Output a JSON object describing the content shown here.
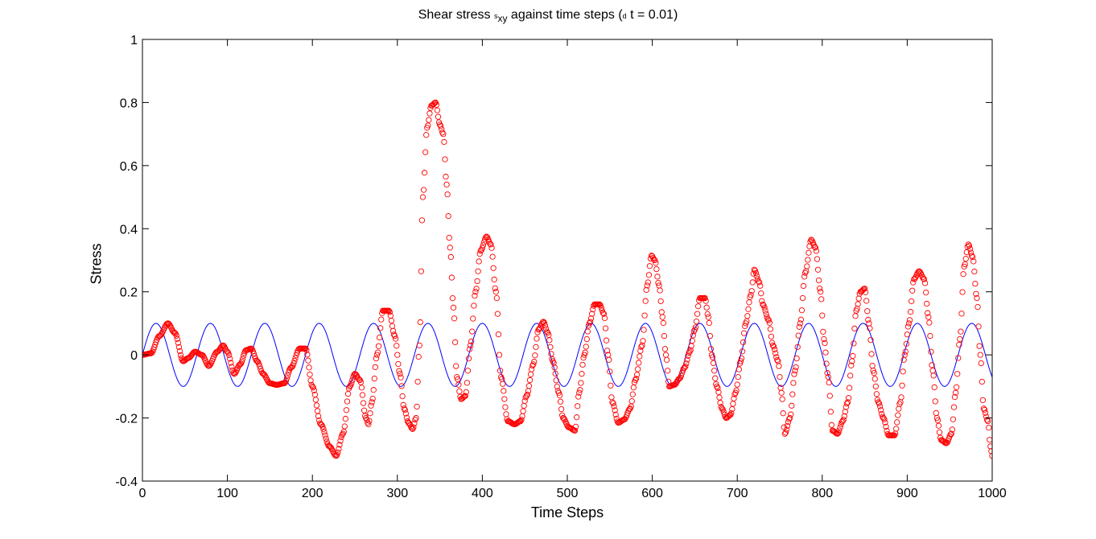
{
  "title": {
    "prefix": "Shear stress ",
    "symbol1": "s",
    "subscript": "xy",
    "middle": " against time steps (",
    "symbol2": "d",
    "suffix": " t = 0.01)"
  },
  "chart_data": {
    "type": "line",
    "xlabel": "Time Steps",
    "ylabel": "Stress",
    "xlim": [
      0,
      1000
    ],
    "ylim": [
      -0.4,
      1
    ],
    "xticks": [
      0,
      100,
      200,
      300,
      400,
      500,
      600,
      700,
      800,
      900,
      1000
    ],
    "yticks": [
      -0.4,
      -0.2,
      0,
      0.2,
      0.4,
      0.6,
      0.8,
      1
    ],
    "ytick_labels": [
      "-0.4",
      "-0.2",
      "0",
      "0.2",
      "0.4",
      "0.6",
      "0.8",
      "1"
    ],
    "grid": false,
    "series": [
      {
        "style": "line",
        "color": "#0000ff",
        "function": "0.1*sin(2*pi*x/64)",
        "amplitude": 0.1,
        "period": 64
      },
      {
        "style": "circle-markers",
        "color": "#ff0000",
        "points": [
          [
            0,
            0
          ],
          [
            10,
            0.005
          ],
          [
            20,
            0.06
          ],
          [
            30,
            0.1
          ],
          [
            38,
            0.07
          ],
          [
            48,
            -0.02
          ],
          [
            54,
            -0.01
          ],
          [
            62,
            0.01
          ],
          [
            70,
            0.0
          ],
          [
            78,
            -0.035
          ],
          [
            88,
            0.01
          ],
          [
            95,
            0.03
          ],
          [
            100,
            0.01
          ],
          [
            108,
            -0.06
          ],
          [
            115,
            -0.03
          ],
          [
            122,
            0.015
          ],
          [
            128,
            0.02
          ],
          [
            135,
            -0.02
          ],
          [
            142,
            -0.06
          ],
          [
            150,
            -0.09
          ],
          [
            158,
            -0.095
          ],
          [
            167,
            -0.09
          ],
          [
            175,
            -0.04
          ],
          [
            185,
            0.02
          ],
          [
            192,
            0.02
          ],
          [
            200,
            -0.1
          ],
          [
            210,
            -0.22
          ],
          [
            220,
            -0.29
          ],
          [
            228,
            -0.32
          ],
          [
            236,
            -0.25
          ],
          [
            244,
            -0.1
          ],
          [
            250,
            -0.06
          ],
          [
            256,
            -0.08
          ],
          [
            263,
            -0.2
          ],
          [
            266,
            -0.22
          ],
          [
            270,
            -0.15
          ],
          [
            276,
            0.0
          ],
          [
            283,
            0.14
          ],
          [
            290,
            0.14
          ],
          [
            297,
            0.06
          ],
          [
            303,
            -0.06
          ],
          [
            308,
            -0.17
          ],
          [
            313,
            -0.215
          ],
          [
            318,
            -0.235
          ],
          [
            322,
            -0.2
          ],
          [
            326,
            0.03
          ],
          [
            330,
            0.5
          ],
          [
            335,
            0.72
          ],
          [
            340,
            0.79
          ],
          [
            345,
            0.8
          ],
          [
            350,
            0.73
          ],
          [
            354,
            0.7
          ],
          [
            358,
            0.54
          ],
          [
            362,
            0.34
          ],
          [
            366,
            0.15
          ],
          [
            370,
            -0.07
          ],
          [
            375,
            -0.14
          ],
          [
            380,
            -0.13
          ],
          [
            386,
            0.03
          ],
          [
            392,
            0.2
          ],
          [
            398,
            0.33
          ],
          [
            405,
            0.375
          ],
          [
            410,
            0.35
          ],
          [
            416,
            0.2
          ],
          [
            422,
            -0.07
          ],
          [
            430,
            -0.21
          ],
          [
            438,
            -0.22
          ],
          [
            445,
            -0.21
          ],
          [
            452,
            -0.13
          ],
          [
            460,
            -0.03
          ],
          [
            466,
            0.08
          ],
          [
            472,
            0.105
          ],
          [
            477,
            0.07
          ],
          [
            483,
            -0.02
          ],
          [
            490,
            -0.12
          ],
          [
            495,
            -0.2
          ],
          [
            502,
            -0.23
          ],
          [
            509,
            -0.24
          ],
          [
            514,
            -0.12
          ],
          [
            520,
            0.0
          ],
          [
            526,
            0.1
          ],
          [
            532,
            0.16
          ],
          [
            538,
            0.16
          ],
          [
            543,
            0.13
          ],
          [
            548,
            0.0
          ],
          [
            553,
            -0.15
          ],
          [
            560,
            -0.215
          ],
          [
            567,
            -0.205
          ],
          [
            574,
            -0.17
          ],
          [
            580,
            -0.08
          ],
          [
            588,
            0.03
          ],
          [
            594,
            0.22
          ],
          [
            599,
            0.315
          ],
          [
            603,
            0.3
          ],
          [
            608,
            0.22
          ],
          [
            612,
            0.12
          ],
          [
            616,
            0.0
          ],
          [
            620,
            -0.1
          ],
          [
            626,
            -0.095
          ],
          [
            632,
            -0.075
          ],
          [
            638,
            -0.04
          ],
          [
            644,
            0.01
          ],
          [
            650,
            0.08
          ],
          [
            656,
            0.18
          ],
          [
            662,
            0.18
          ],
          [
            666,
            0.12
          ],
          [
            670,
            0.0
          ],
          [
            676,
            -0.1
          ],
          [
            682,
            -0.17
          ],
          [
            687,
            -0.2
          ],
          [
            692,
            -0.19
          ],
          [
            698,
            -0.12
          ],
          [
            704,
            -0.02
          ],
          [
            710,
            0.1
          ],
          [
            716,
            0.19
          ],
          [
            720,
            0.27
          ],
          [
            726,
            0.23
          ],
          [
            730,
            0.16
          ],
          [
            737,
            0.11
          ],
          [
            742,
            0.03
          ],
          [
            748,
            -0.02
          ],
          [
            752,
            -0.12
          ],
          [
            756,
            -0.25
          ],
          [
            762,
            -0.2
          ],
          [
            768,
            -0.05
          ],
          [
            774,
            0.1
          ],
          [
            780,
            0.26
          ],
          [
            787,
            0.365
          ],
          [
            792,
            0.34
          ],
          [
            798,
            0.2
          ],
          [
            802,
            0.05
          ],
          [
            807,
            -0.07
          ],
          [
            812,
            -0.24
          ],
          [
            818,
            -0.25
          ],
          [
            824,
            -0.21
          ],
          [
            830,
            -0.15
          ],
          [
            835,
            -0.02
          ],
          [
            840,
            0.14
          ],
          [
            845,
            0.2
          ],
          [
            850,
            0.21
          ],
          [
            855,
            0.1
          ],
          [
            860,
            -0.05
          ],
          [
            866,
            -0.15
          ],
          [
            872,
            -0.2
          ],
          [
            878,
            -0.255
          ],
          [
            885,
            -0.255
          ],
          [
            892,
            -0.15
          ],
          [
            897,
            0.0
          ],
          [
            902,
            0.1
          ],
          [
            908,
            0.24
          ],
          [
            914,
            0.265
          ],
          [
            920,
            0.24
          ],
          [
            925,
            0.12
          ],
          [
            930,
            -0.05
          ],
          [
            935,
            -0.2
          ],
          [
            940,
            -0.27
          ],
          [
            946,
            -0.28
          ],
          [
            952,
            -0.25
          ],
          [
            957,
            -0.12
          ],
          [
            962,
            0.05
          ],
          [
            967,
            0.28
          ],
          [
            972,
            0.35
          ],
          [
            977,
            0.31
          ],
          [
            982,
            0.18
          ],
          [
            986,
            0.0
          ],
          [
            990,
            -0.17
          ],
          [
            995,
            -0.21
          ],
          [
            998,
            -0.29
          ],
          [
            1000,
            -0.32
          ]
        ]
      }
    ]
  }
}
